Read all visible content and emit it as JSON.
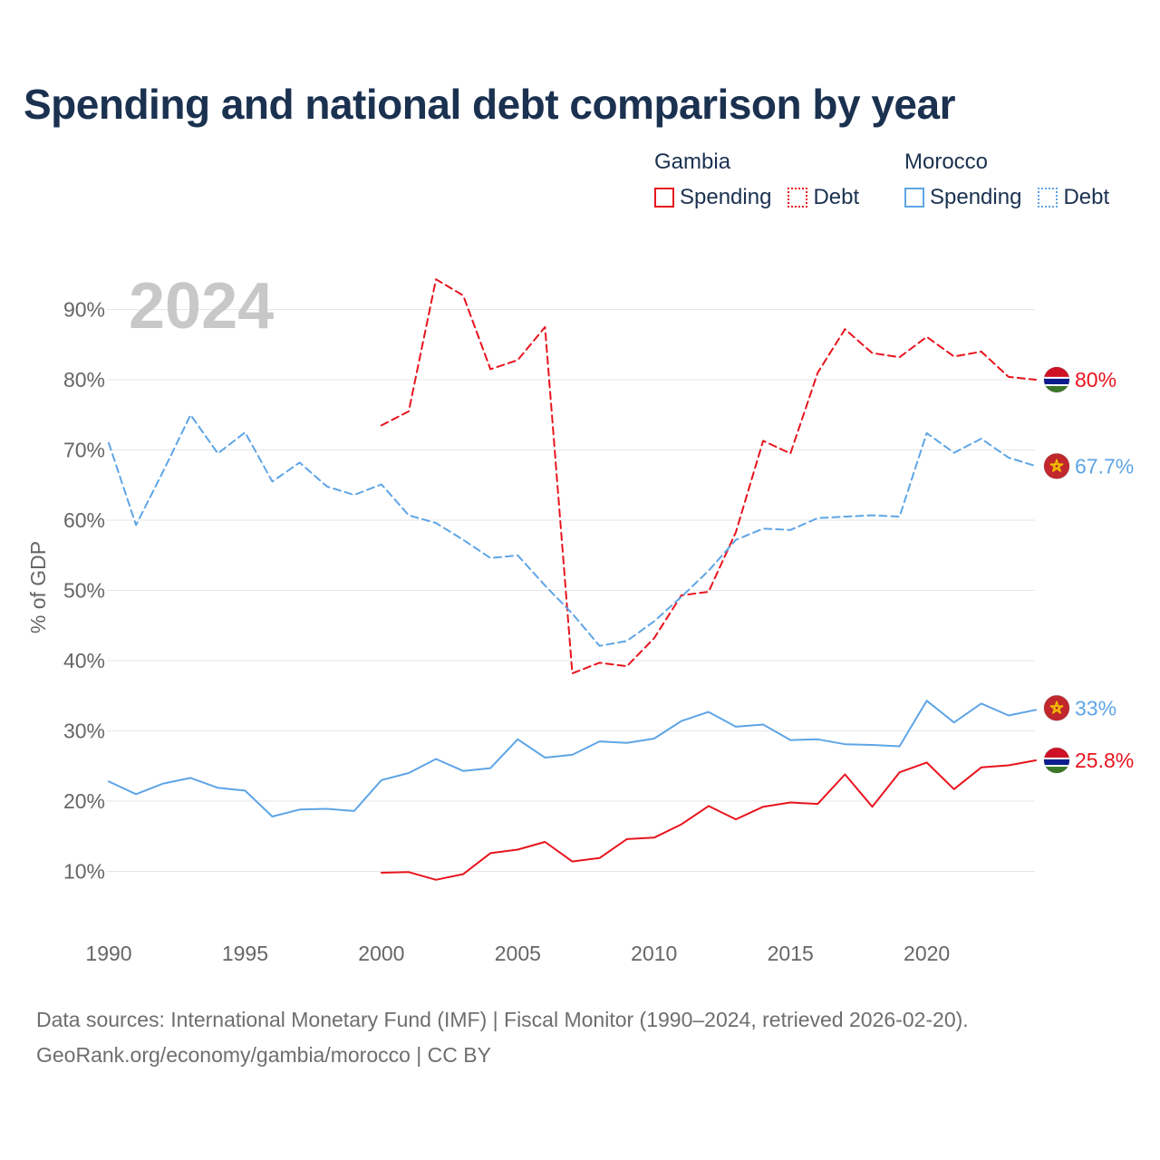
{
  "title": "Spending and national debt comparison by year",
  "legend": {
    "gambia": {
      "name": "Gambia",
      "spending": "Spending",
      "debt": "Debt"
    },
    "morocco": {
      "name": "Morocco",
      "spending": "Spending",
      "debt": "Debt"
    }
  },
  "source": {
    "line1": "Data sources: International Monetary Fund (IMF) | Fiscal Monitor (1990–2024, retrieved 2026-02-20).",
    "line2": "GeoRank.org/economy/gambia/morocco | CC BY"
  },
  "colors": {
    "gambia": "#e8141e",
    "morocco": "#5ea5e6",
    "title": "#1b3150",
    "axis": "#666666",
    "grid": "#e6e6e6",
    "year": "#c8c8c8"
  },
  "chart_data": {
    "type": "line",
    "year_label": "2024",
    "ylabel": "% of GDP",
    "xlim": [
      1990,
      2024
    ],
    "ylim": [
      0,
      95
    ],
    "x_ticks": [
      1990,
      1995,
      2000,
      2005,
      2010,
      2015,
      2020
    ],
    "y_ticks": [
      10,
      20,
      30,
      40,
      50,
      60,
      70,
      80,
      90
    ],
    "y_tick_labels": [
      "10%",
      "20%",
      "30%",
      "40%",
      "50%",
      "60%",
      "70%",
      "80%",
      "90%"
    ],
    "series": [
      {
        "key": "gambia-debt",
        "country": "Gambia",
        "name": "Debt",
        "color": "#e8141e",
        "dashed": true,
        "flag": "gambia-flag",
        "end_label": "80%",
        "x": [
          2000,
          2001,
          2002,
          2003,
          2004,
          2005,
          2006,
          2007,
          2008,
          2009,
          2010,
          2011,
          2012,
          2013,
          2014,
          2015,
          2016,
          2017,
          2018,
          2019,
          2020,
          2021,
          2022,
          2023,
          2024
        ],
        "values": [
          73.5,
          75.5,
          94.3,
          92.0,
          81.5,
          82.8,
          87.5,
          38.2,
          39.7,
          39.2,
          43.2,
          49.3,
          49.8,
          58.3,
          71.3,
          69.5,
          81.0,
          87.2,
          83.8,
          83.2,
          86.1,
          83.3,
          84.0,
          80.4,
          80.0
        ]
      },
      {
        "key": "morocco-debt",
        "country": "Morocco",
        "name": "Debt",
        "color": "#5ea5e6",
        "dashed": true,
        "flag": "morocco-flag",
        "end_label": "67.7%",
        "x": [
          1990,
          1991,
          1992,
          1993,
          1994,
          1995,
          1996,
          1997,
          1998,
          1999,
          2000,
          2001,
          2002,
          2003,
          2004,
          2005,
          2006,
          2007,
          2008,
          2009,
          2010,
          2011,
          2012,
          2013,
          2014,
          2015,
          2016,
          2017,
          2018,
          2019,
          2020,
          2021,
          2022,
          2023,
          2024
        ],
        "values": [
          71.0,
          59.3,
          67.0,
          75.0,
          69.5,
          72.5,
          65.5,
          68.2,
          64.8,
          63.6,
          65.1,
          60.7,
          59.6,
          57.2,
          54.6,
          55.0,
          50.7,
          46.7,
          42.1,
          42.8,
          45.6,
          49.1,
          52.8,
          57.2,
          58.8,
          58.6,
          60.3,
          60.5,
          60.7,
          60.5,
          72.4,
          69.6,
          71.6,
          68.9,
          67.7
        ]
      },
      {
        "key": "morocco-spending",
        "country": "Morocco",
        "name": "Spending",
        "color": "#5ea5e6",
        "dashed": false,
        "flag": "morocco-flag",
        "end_label": "33%",
        "x": [
          1990,
          1991,
          1992,
          1993,
          1994,
          1995,
          1996,
          1997,
          1998,
          1999,
          2000,
          2001,
          2002,
          2003,
          2004,
          2005,
          2006,
          2007,
          2008,
          2009,
          2010,
          2011,
          2012,
          2013,
          2014,
          2015,
          2016,
          2017,
          2018,
          2019,
          2020,
          2021,
          2022,
          2023,
          2024
        ],
        "values": [
          22.8,
          21.0,
          22.5,
          23.3,
          21.9,
          21.5,
          17.8,
          18.8,
          18.9,
          18.6,
          23.0,
          24.0,
          26.0,
          24.3,
          24.7,
          28.8,
          26.2,
          26.6,
          28.5,
          28.3,
          28.9,
          31.4,
          32.7,
          30.6,
          30.9,
          28.7,
          28.8,
          28.1,
          28.0,
          27.8,
          34.3,
          31.2,
          33.9,
          32.2,
          33.0
        ]
      },
      {
        "key": "gambia-spending",
        "country": "Gambia",
        "name": "Spending",
        "color": "#e8141e",
        "dashed": false,
        "flag": "gambia-flag",
        "end_label": "25.8%",
        "x": [
          2000,
          2001,
          2002,
          2003,
          2004,
          2005,
          2006,
          2007,
          2008,
          2009,
          2010,
          2011,
          2012,
          2013,
          2014,
          2015,
          2016,
          2017,
          2018,
          2019,
          2020,
          2021,
          2022,
          2023,
          2024
        ],
        "values": [
          9.8,
          9.9,
          8.8,
          9.6,
          12.6,
          13.1,
          14.2,
          11.4,
          11.9,
          14.6,
          14.8,
          16.7,
          19.3,
          17.4,
          19.2,
          19.8,
          19.6,
          23.8,
          19.2,
          24.1,
          25.5,
          21.7,
          24.8,
          25.1,
          25.8
        ]
      }
    ]
  }
}
